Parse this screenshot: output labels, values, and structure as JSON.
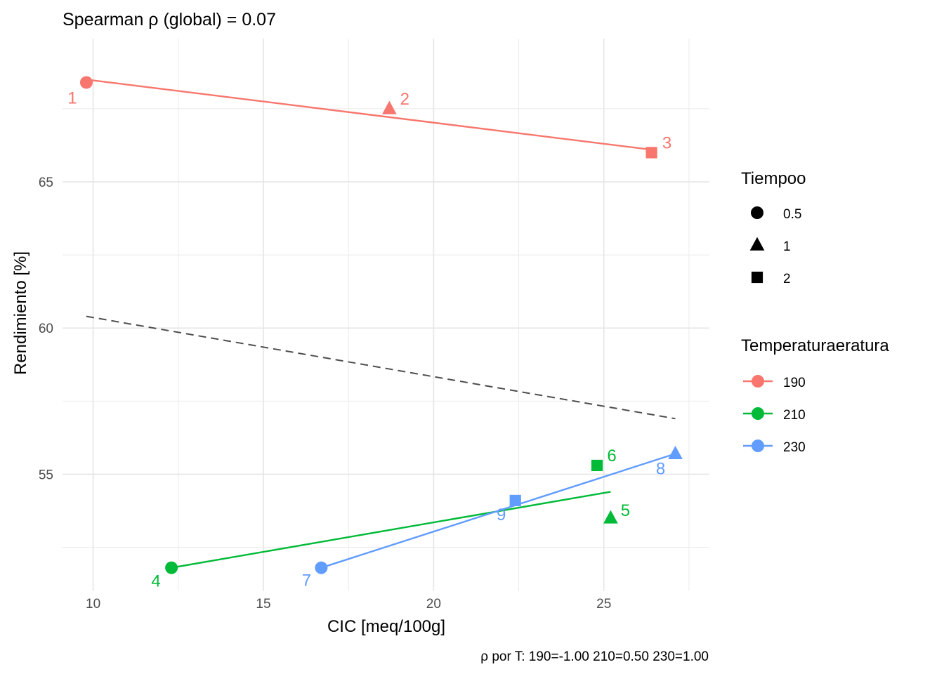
{
  "chart_data": {
    "type": "scatter",
    "title": "Spearman ρ (global) = 0.07",
    "xlabel": "CIC [meq/100g]",
    "ylabel": "Rendimiento [%]",
    "caption": "ρ por T: 190=-1.00   210=0.50   230=1.00",
    "xlim": [
      9.1,
      28.1
    ],
    "ylim": [
      51.0,
      69.9
    ],
    "x_ticks": [
      10,
      15,
      20,
      25
    ],
    "x_tick_labels": [
      "10",
      "15",
      "20",
      "25"
    ],
    "y_ticks": [
      55,
      60,
      65
    ],
    "y_tick_labels": [
      "55",
      "60",
      "65"
    ],
    "grid": true,
    "legend_position": "right",
    "shape_legend": {
      "title": "Tiempoo",
      "entries": [
        {
          "label": "0.5",
          "shape": "circle"
        },
        {
          "label": "1",
          "shape": "triangle"
        },
        {
          "label": "2",
          "shape": "square"
        }
      ]
    },
    "color_legend": {
      "title": "Temperaturaeratura",
      "entries": [
        {
          "label": "190",
          "color": "#F8766D"
        },
        {
          "label": "210",
          "color": "#00BA38"
        },
        {
          "label": "230",
          "color": "#619CFF"
        }
      ]
    },
    "points": [
      {
        "label": "1",
        "x": 9.8,
        "y": 68.4,
        "temp": "190",
        "tiempo": "0.5"
      },
      {
        "label": "2",
        "x": 18.7,
        "y": 67.5,
        "temp": "190",
        "tiempo": "1"
      },
      {
        "label": "3",
        "x": 26.4,
        "y": 66.0,
        "temp": "190",
        "tiempo": "2"
      },
      {
        "label": "4",
        "x": 12.3,
        "y": 51.8,
        "temp": "210",
        "tiempo": "0.5"
      },
      {
        "label": "5",
        "x": 25.2,
        "y": 53.5,
        "temp": "210",
        "tiempo": "1"
      },
      {
        "label": "6",
        "x": 24.8,
        "y": 55.3,
        "temp": "210",
        "tiempo": "2"
      },
      {
        "label": "7",
        "x": 16.7,
        "y": 51.8,
        "temp": "230",
        "tiempo": "0.5"
      },
      {
        "label": "8",
        "x": 27.1,
        "y": 55.7,
        "temp": "230",
        "tiempo": "1"
      },
      {
        "label": "9",
        "x": 22.4,
        "y": 54.1,
        "temp": "230",
        "tiempo": "2"
      }
    ],
    "fit_lines": [
      {
        "temp": "190",
        "x": [
          9.8,
          26.4
        ],
        "y": [
          68.5,
          66.1
        ]
      },
      {
        "temp": "210",
        "x": [
          12.3,
          25.2
        ],
        "y": [
          51.8,
          54.4
        ]
      },
      {
        "temp": "230",
        "x": [
          16.7,
          27.1
        ],
        "y": [
          51.8,
          55.7
        ]
      }
    ],
    "global_fit": {
      "x": [
        9.8,
        27.1
      ],
      "y": [
        60.4,
        56.9
      ],
      "style": "dashed",
      "color": "#4d4d4d"
    }
  }
}
